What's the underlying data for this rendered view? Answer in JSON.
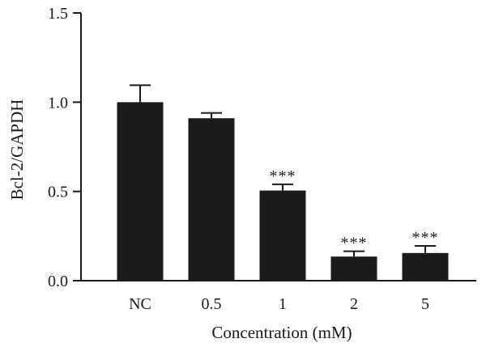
{
  "chart_data": {
    "type": "bar",
    "categories": [
      "NC",
      "0.5",
      "1",
      "2",
      "5"
    ],
    "values": [
      1.0,
      0.91,
      0.505,
      0.135,
      0.155
    ],
    "errors": [
      0.095,
      0.03,
      0.035,
      0.03,
      0.04
    ],
    "annotations": [
      "",
      "",
      "***",
      "***",
      "***"
    ],
    "ylim": [
      0,
      1.5
    ],
    "yticks": [
      0.0,
      0.5,
      1.0,
      1.5
    ],
    "ytick_labels": [
      "0.0",
      "0.5",
      "1.0",
      "1.5"
    ],
    "xlabel": "Concentration (mM)",
    "ylabel": "Bcl-2/GAPDH",
    "bar_color": "#1a1a1a",
    "grid": false
  }
}
